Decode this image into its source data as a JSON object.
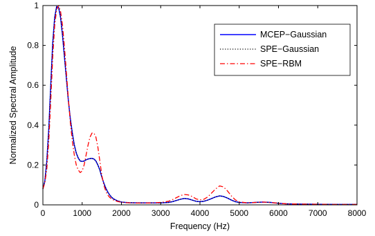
{
  "chart_data": {
    "type": "line",
    "title": "",
    "xlabel": "Frequency (Hz)",
    "ylabel": "Normalized Spectral Amplitude",
    "xlim": [
      0,
      8000
    ],
    "ylim": [
      0,
      1
    ],
    "x_ticks": [
      "0",
      "1000",
      "2000",
      "3000",
      "4000",
      "5000",
      "6000",
      "7000",
      "8000"
    ],
    "y_ticks": [
      "0",
      "0.2",
      "0.4",
      "0.6",
      "0.8",
      "1"
    ],
    "grid": false,
    "legend_position": "top-right",
    "series": [
      {
        "name": "MCEP−Gaussian",
        "color": "#0000ff",
        "style": "solid",
        "x": [
          0,
          50,
          100,
          150,
          200,
          250,
          300,
          350,
          400,
          450,
          500,
          550,
          600,
          650,
          700,
          750,
          800,
          850,
          900,
          950,
          1000,
          1050,
          1100,
          1150,
          1200,
          1250,
          1300,
          1350,
          1400,
          1450,
          1500,
          1550,
          1600,
          1650,
          1700,
          1750,
          1800,
          1900,
          2000,
          2100,
          2200,
          2400,
          2600,
          2800,
          3000,
          3200,
          3300,
          3400,
          3500,
          3600,
          3700,
          3800,
          3900,
          4000,
          4100,
          4200,
          4300,
          4400,
          4500,
          4600,
          4700,
          4800,
          4900,
          5000,
          5200,
          5400,
          5600,
          5800,
          6000,
          6200,
          6500,
          7000,
          7500,
          8000
        ],
        "y": [
          0.08,
          0.12,
          0.22,
          0.38,
          0.6,
          0.81,
          0.94,
          0.995,
          0.99,
          0.94,
          0.85,
          0.74,
          0.63,
          0.52,
          0.43,
          0.36,
          0.3,
          0.26,
          0.235,
          0.22,
          0.218,
          0.22,
          0.226,
          0.23,
          0.232,
          0.233,
          0.23,
          0.22,
          0.2,
          0.175,
          0.14,
          0.11,
          0.085,
          0.065,
          0.05,
          0.038,
          0.03,
          0.02,
          0.014,
          0.012,
          0.011,
          0.01,
          0.01,
          0.01,
          0.01,
          0.012,
          0.016,
          0.022,
          0.028,
          0.032,
          0.03,
          0.024,
          0.018,
          0.016,
          0.018,
          0.024,
          0.032,
          0.04,
          0.045,
          0.042,
          0.034,
          0.024,
          0.016,
          0.012,
          0.01,
          0.012,
          0.014,
          0.012,
          0.008,
          0.005,
          0.004,
          0.003,
          0.002,
          0.002
        ]
      },
      {
        "name": "SPE−Gaussian",
        "color": "#000000",
        "style": "dotted",
        "x": [
          0,
          50,
          100,
          150,
          200,
          250,
          300,
          350,
          400,
          450,
          500,
          550,
          600,
          650,
          700,
          750,
          800,
          850,
          900,
          950,
          1000,
          1050,
          1100,
          1150,
          1200,
          1250,
          1300,
          1350,
          1400,
          1450,
          1500,
          1550,
          1600,
          1650,
          1700,
          1750,
          1800,
          1900,
          2000,
          2100,
          2200,
          2400,
          2600,
          2800,
          3000,
          3200,
          3300,
          3400,
          3500,
          3600,
          3700,
          3800,
          3900,
          4000,
          4100,
          4200,
          4300,
          4400,
          4500,
          4600,
          4700,
          4800,
          4900,
          5000,
          5200,
          5400,
          5600,
          5800,
          6000,
          6200,
          6500,
          7000,
          7500,
          8000
        ],
        "y": [
          0.08,
          0.12,
          0.22,
          0.38,
          0.6,
          0.81,
          0.94,
          0.995,
          0.99,
          0.94,
          0.85,
          0.74,
          0.63,
          0.52,
          0.43,
          0.36,
          0.3,
          0.26,
          0.235,
          0.22,
          0.218,
          0.22,
          0.226,
          0.23,
          0.232,
          0.233,
          0.23,
          0.22,
          0.2,
          0.175,
          0.14,
          0.11,
          0.085,
          0.065,
          0.05,
          0.038,
          0.03,
          0.02,
          0.014,
          0.012,
          0.011,
          0.01,
          0.01,
          0.01,
          0.01,
          0.012,
          0.016,
          0.022,
          0.028,
          0.032,
          0.03,
          0.024,
          0.018,
          0.016,
          0.018,
          0.024,
          0.032,
          0.04,
          0.045,
          0.042,
          0.034,
          0.024,
          0.016,
          0.012,
          0.01,
          0.012,
          0.014,
          0.012,
          0.008,
          0.005,
          0.004,
          0.003,
          0.002,
          0.002
        ]
      },
      {
        "name": "SPE−RBM",
        "color": "#ff0000",
        "style": "dashdot",
        "x": [
          0,
          50,
          100,
          150,
          200,
          250,
          300,
          350,
          400,
          450,
          500,
          550,
          600,
          650,
          700,
          750,
          800,
          850,
          900,
          950,
          1000,
          1050,
          1100,
          1150,
          1200,
          1250,
          1300,
          1350,
          1400,
          1450,
          1500,
          1550,
          1600,
          1650,
          1700,
          1750,
          1800,
          1900,
          2000,
          2100,
          2200,
          2400,
          2600,
          2800,
          3000,
          3200,
          3300,
          3400,
          3500,
          3600,
          3700,
          3800,
          3900,
          4000,
          4100,
          4200,
          4300,
          4400,
          4500,
          4600,
          4700,
          4800,
          4900,
          5000,
          5200,
          5400,
          5600,
          5800,
          6000,
          6200,
          6500,
          7000,
          7500,
          8000
        ],
        "y": [
          0.08,
          0.11,
          0.18,
          0.32,
          0.52,
          0.74,
          0.9,
          0.98,
          1.0,
          0.97,
          0.9,
          0.79,
          0.66,
          0.53,
          0.41,
          0.32,
          0.25,
          0.2,
          0.175,
          0.162,
          0.17,
          0.2,
          0.25,
          0.3,
          0.34,
          0.36,
          0.36,
          0.34,
          0.29,
          0.22,
          0.15,
          0.1,
          0.07,
          0.05,
          0.038,
          0.03,
          0.024,
          0.017,
          0.013,
          0.011,
          0.01,
          0.009,
          0.009,
          0.01,
          0.012,
          0.018,
          0.026,
          0.036,
          0.046,
          0.052,
          0.05,
          0.042,
          0.03,
          0.025,
          0.028,
          0.04,
          0.06,
          0.08,
          0.095,
          0.09,
          0.07,
          0.045,
          0.025,
          0.015,
          0.01,
          0.012,
          0.014,
          0.012,
          0.008,
          0.005,
          0.004,
          0.003,
          0.002,
          0.002
        ]
      }
    ]
  }
}
